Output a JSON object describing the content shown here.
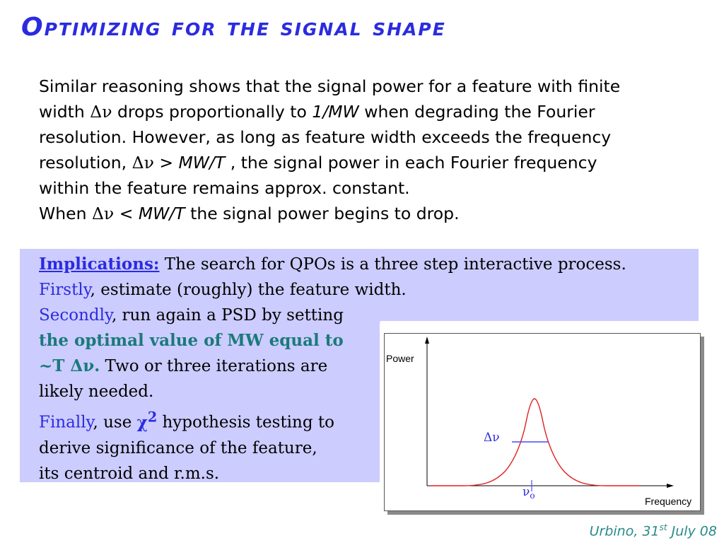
{
  "slide": {
    "title": "Optimizing for the signal shape",
    "intro": {
      "l1": "Similar reasoning shows that the signal power for a feature with finite",
      "l2a": "width ",
      "dnu": "Δν",
      "l2b": " drops proportionally to ",
      "l2c": "1/MW",
      "l2d": " when degrading the Fourier",
      "l3": "resolution. However, as long as feature width exceeds the frequency",
      "l4a": "resolution, ",
      "l4b": " > ",
      "l4c": "MW/T",
      "l4d": " , the signal power in each Fourier frequency",
      "l5": "within the feature remains approx. constant.",
      "l6a": "When ",
      "l6b": " < ",
      "l6c": "MW/T",
      "l6d": "  the signal power begins to drop."
    },
    "implications": {
      "label": "Implications:",
      "l1b": " The search for QPOs is a three step interactive process.",
      "firstly": "Firstly",
      "l2b": ", estimate (roughly) the feature width.",
      "secondly": "Secondly",
      "l3b": ", run again a PSD by setting",
      "l4": "the optimal value of MW equal to",
      "l5a": "~T Δν.",
      "l5b": " Two or three iterations are",
      "l6": "likely needed.",
      "finally": "Finally",
      "l7b": ", use ",
      "chi": "χ",
      "chi_sup": "2",
      "l7c": " hypothesis testing to",
      "l8": "derive significance of the feature,",
      "l9": "its centroid and r.m.s."
    },
    "plot": {
      "ylabel": "Power",
      "xlabel": "Frequency",
      "width_label": "Δν",
      "centroid_label": "ν",
      "centroid_sub": "o"
    },
    "footer": {
      "text_a": "Urbino, 31",
      "text_sup": "st",
      "text_b": " July 08"
    },
    "colors": {
      "title": "#2b2be0",
      "box": "#ccccff",
      "curve": "#e02020",
      "width_line": "#4a4aff",
      "teal": "#1a7a7a"
    }
  }
}
